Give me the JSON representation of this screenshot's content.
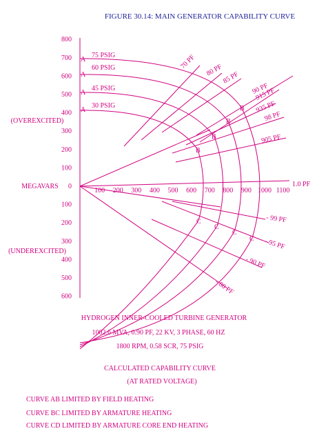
{
  "title": "FIGURE 30.14:  MAIN GENERATOR CAPABILITY CURVE",
  "axis": {
    "y_upper": [
      800,
      700,
      600,
      500,
      400,
      300,
      200,
      100,
      0
    ],
    "y_lower": [
      100,
      200,
      300,
      400,
      500,
      600
    ],
    "x": [
      100,
      200,
      300,
      400,
      500,
      600,
      700,
      800,
      900,
      1000,
      1100
    ],
    "overexcited": "(OVEREXCITED)",
    "megavars": "MEGAVARS",
    "underexcited": "(UNDEREXCITED)"
  },
  "pressures": [
    "75 PSIG",
    "60 PSIG",
    "45 PSIG",
    "30 PSIG"
  ],
  "points": {
    "a": "A",
    "b": "B",
    "c": "C"
  },
  "pf_labels": [
    "70 PF",
    "80 PF",
    "85 PF",
    "90 PF",
    "915 PF",
    "935 PF",
    "98 PF",
    "905 PF",
    "1.0 PF",
    "- 99 PF",
    "- 95 PF",
    "- 90 PF",
    "- 80 PF"
  ],
  "description": [
    "HYDROGEN INNER-COOLED TURBINE GENERATOR",
    "1002.6 MVA, 0.90 PF, 22 KV, 3 PHASE, 60 HZ",
    "1800 RPM, 0.58 SCR, 75 PSIG",
    "CALCULATED CAPABILITY CURVE",
    "(AT RATED VOLTAGE)"
  ],
  "notes": [
    "CURVE AB LIMITED BY FIELD HEATING",
    "CURVE BC LIMITED BY ARMATURE HEATING",
    "CURVE CD LIMITED BY ARMATURE CORE END HEATING"
  ]
}
